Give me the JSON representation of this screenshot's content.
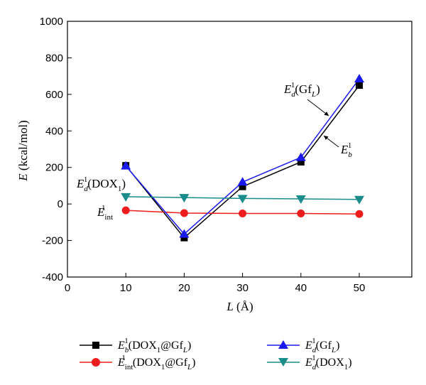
{
  "chart_data": {
    "type": "line",
    "x": [
      10,
      20,
      30,
      40,
      50
    ],
    "xlabel": "L (Å)",
    "ylabel": "E (kcal/mol)",
    "xlim": [
      0,
      59
    ],
    "ylim": [
      -400,
      1000
    ],
    "xticks": [
      0,
      10,
      20,
      30,
      40,
      50
    ],
    "yticks": [
      -400,
      -200,
      0,
      200,
      400,
      600,
      800,
      1000
    ],
    "tick_labels_x": [
      "0",
      "10",
      "20",
      "30",
      "40",
      "50"
    ],
    "tick_labels_y": [
      "-400",
      "-200",
      "0",
      "200",
      "400",
      "600",
      "800",
      "1000"
    ],
    "grid": false,
    "legend_position": "bottom",
    "series": [
      {
        "name": "E_b^1(DOX_1@Gf_L)",
        "color": "#000000",
        "marker": "square",
        "values": [
          210,
          -185,
          95,
          230,
          650
        ]
      },
      {
        "name": "E_int^1(DOX_1@Gf_L)",
        "color": "#ee1c1c",
        "marker": "circle",
        "values": [
          -35,
          -50,
          -52,
          -52,
          -55
        ]
      },
      {
        "name": "E_d^1(Gf_L)",
        "color": "#1a1aee",
        "marker": "triangle-up",
        "values": [
          208,
          -165,
          120,
          255,
          685
        ]
      },
      {
        "name": "E_d^1(DOX_1)",
        "color": "#1a8c8c",
        "marker": "triangle-down",
        "values": [
          40,
          35,
          30,
          28,
          25
        ]
      }
    ],
    "annotations": [
      {
        "text": "E_d^1(Gf_L)"
      },
      {
        "text": "E_b^1"
      },
      {
        "text": "E_d^1(DOX_1)"
      },
      {
        "text": "E_int^1"
      }
    ]
  }
}
